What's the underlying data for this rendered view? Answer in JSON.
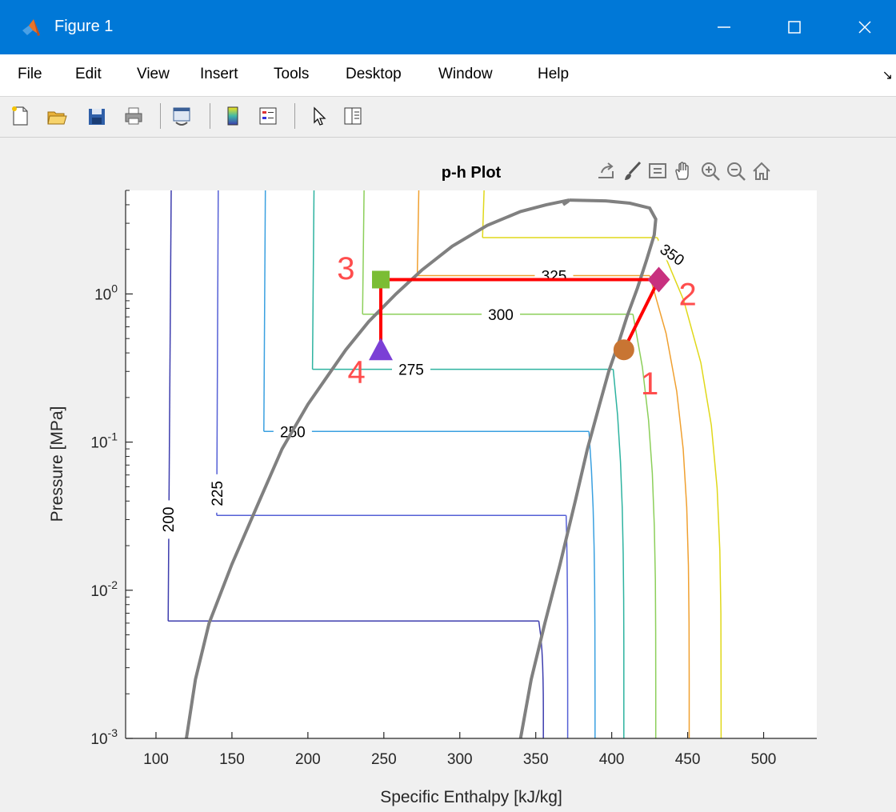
{
  "window": {
    "title": "Figure 1",
    "minimize_icon": "minimize-icon",
    "maximize_icon": "maximize-icon",
    "close_icon": "close-icon"
  },
  "menu": {
    "items": [
      "File",
      "Edit",
      "View",
      "Insert",
      "Tools",
      "Desktop",
      "Window",
      "Help"
    ],
    "overflow_glyph": "↘"
  },
  "toolbar": {
    "icons": [
      "new-figure-icon",
      "open-file-icon",
      "save-icon",
      "print-icon",
      "link-plot-icon",
      "colorbar-icon",
      "legend-icon",
      "edit-plot-icon",
      "property-inspector-icon"
    ]
  },
  "axes_toolbar": {
    "icons": [
      "export-icon",
      "brush-icon",
      "data-tips-icon",
      "pan-icon",
      "zoom-in-icon",
      "zoom-out-icon",
      "home-icon"
    ]
  },
  "colors": {
    "dome": "#808080",
    "cycle": "#ff0000",
    "state_label": "#ff4d4d"
  },
  "chart_data": {
    "type": "line",
    "title": "p-h Plot",
    "xlabel": "Specific Enthalpy [kJ/kg]",
    "ylabel": "Pressure [MPa]",
    "xlim": [
      80,
      535
    ],
    "ylim": [
      0.001,
      5
    ],
    "yscale": "log",
    "grid": false,
    "xticks": [
      "100",
      "150",
      "200",
      "250",
      "300",
      "350",
      "400",
      "450",
      "500"
    ],
    "yticks": [
      {
        "base": "10",
        "exp": "0",
        "value": 1
      },
      {
        "base": "10",
        "exp": "-1",
        "value": 0.1
      },
      {
        "base": "10",
        "exp": "-2",
        "value": 0.01
      },
      {
        "base": "10",
        "exp": "-3",
        "value": 0.001
      }
    ],
    "saturation_dome": {
      "liquid": [
        [
          120,
          0.001
        ],
        [
          126,
          0.0025
        ],
        [
          135,
          0.006
        ],
        [
          150,
          0.015
        ],
        [
          168,
          0.04
        ],
        [
          183,
          0.09
        ],
        [
          200,
          0.18
        ],
        [
          213,
          0.28
        ],
        [
          225,
          0.42
        ],
        [
          240,
          0.65
        ],
        [
          258,
          1.0
        ],
        [
          275,
          1.45
        ],
        [
          295,
          2.1
        ],
        [
          318,
          2.9
        ],
        [
          340,
          3.6
        ],
        [
          357,
          4.0
        ],
        [
          372,
          4.3
        ]
      ],
      "vapor": [
        [
          340,
          0.001
        ],
        [
          347,
          0.0025
        ],
        [
          356,
          0.006
        ],
        [
          366,
          0.015
        ],
        [
          376,
          0.04
        ],
        [
          384,
          0.09
        ],
        [
          392,
          0.18
        ],
        [
          398,
          0.3
        ],
        [
          404,
          0.45
        ],
        [
          410,
          0.7
        ],
        [
          417,
          1.1
        ],
        [
          423,
          1.7
        ],
        [
          428,
          2.5
        ],
        [
          429,
          3.2
        ],
        [
          425,
          3.8
        ],
        [
          412,
          4.1
        ],
        [
          396,
          4.25
        ],
        [
          372,
          4.3
        ]
      ],
      "top_tick": [
        [
          372,
          4.3
        ],
        [
          371,
          4.2
        ],
        [
          368,
          4.0
        ]
      ]
    },
    "isotherms": [
      {
        "label": "200",
        "color": "#3d3dae",
        "hliq": 108,
        "hvap": 352,
        "p": 0.0062,
        "vap_to": 355,
        "liq_from": 110,
        "label_at": [
          108,
          0.03
        ]
      },
      {
        "label": "225",
        "color": "#5560d6",
        "hliq": 140,
        "hvap": 370,
        "p": 0.032,
        "vap_to": 371,
        "liq_from": 141,
        "label_at": [
          140,
          0.045
        ]
      },
      {
        "label": "250",
        "color": "#3aa0e0",
        "hliq": 171,
        "hvap": 385,
        "p": 0.118,
        "vap_to": 389,
        "liq_from": 172,
        "label_at": [
          190,
          0.118
        ]
      },
      {
        "label": "275",
        "color": "#2eb3a0",
        "hliq": 203,
        "hvap": 401,
        "p": 0.31,
        "vap_to": 408,
        "liq_from": 204,
        "label_at": [
          268,
          0.31
        ]
      },
      {
        "label": "300",
        "color": "#8ccf5a",
        "hliq": 236,
        "hvap": 414,
        "p": 0.73,
        "vap_to": 429,
        "liq_from": 237,
        "label_at": [
          327,
          0.73
        ]
      },
      {
        "label": "325",
        "color": "#f0a030",
        "hliq": 272,
        "hvap": 425,
        "p": 1.33,
        "vap_to": 451,
        "liq_from": 273,
        "label_at": [
          362,
          1.33
        ]
      },
      {
        "label": "350",
        "color": "#e0d81a",
        "hliq": 315,
        "hvap": 430,
        "p": 2.4,
        "vap_to": 472,
        "liq_from": 316,
        "label_at": [
          440,
          1.85
        ]
      }
    ],
    "cycle": {
      "path": [
        [
          408,
          0.42
        ],
        [
          431,
          1.25
        ],
        [
          248,
          1.25
        ],
        [
          248,
          0.42
        ]
      ],
      "markers": [
        {
          "state": "1",
          "h": 408,
          "p": 0.42,
          "shape": "circle",
          "color": "#c87533"
        },
        {
          "state": "2",
          "h": 431,
          "p": 1.25,
          "shape": "diamond",
          "color": "#c8307f"
        },
        {
          "state": "3",
          "h": 248,
          "p": 1.25,
          "shape": "square",
          "color": "#7bbd34"
        },
        {
          "state": "4",
          "h": 248,
          "p": 0.42,
          "shape": "triangle",
          "color": "#7b3fd6"
        }
      ],
      "state_labels": [
        {
          "text": "1",
          "h": 425,
          "p": 0.25
        },
        {
          "text": "2",
          "h": 450,
          "p": 1.0
        },
        {
          "text": "3",
          "h": 225,
          "p": 1.5
        },
        {
          "text": "4",
          "h": 232,
          "p": 0.3
        }
      ]
    }
  }
}
